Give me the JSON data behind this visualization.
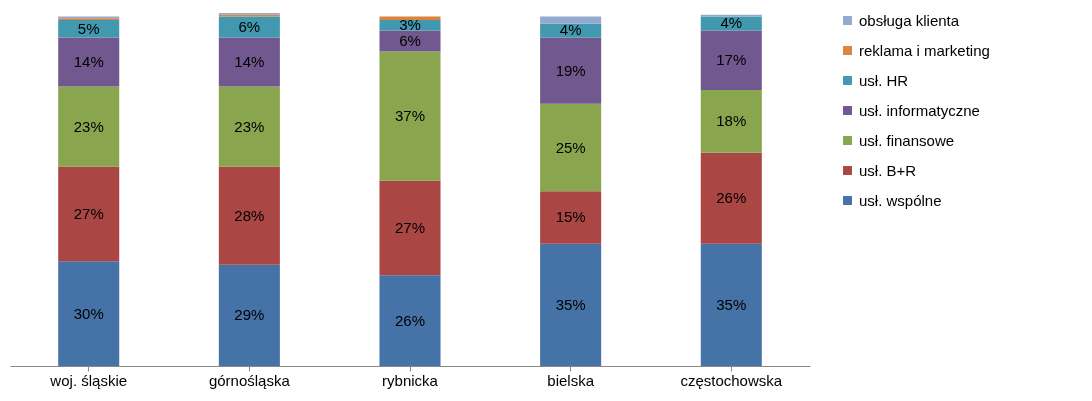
{
  "chart_data": {
    "type": "bar",
    "stacked": true,
    "legend": "right",
    "grid": false,
    "categories": [
      "woj. śląskie",
      "górnośląska",
      "rybnicka",
      "bielska",
      "częstochowska"
    ],
    "series": [
      {
        "name": "usł. wspólne",
        "color": "#4572a7",
        "values": [
          30,
          29,
          26,
          35,
          35
        ],
        "value_labels": [
          "30%",
          "29%",
          "26%",
          "35%",
          "35%"
        ]
      },
      {
        "name": "usł. B+R",
        "color": "#aa4643",
        "values": [
          27,
          28,
          27,
          15,
          26
        ],
        "value_labels": [
          "27%",
          "28%",
          "27%",
          "15%",
          "26%"
        ]
      },
      {
        "name": "usł. finansowe",
        "color": "#89a54e",
        "values": [
          23,
          23,
          37,
          25,
          18
        ],
        "value_labels": [
          "23%",
          "23%",
          "37%",
          "25%",
          "18%"
        ]
      },
      {
        "name": "usł. informatyczne",
        "color": "#71588f",
        "values": [
          14,
          14,
          6,
          19,
          17
        ],
        "value_labels": [
          "14%",
          "14%",
          "6%",
          "19%",
          "17%"
        ]
      },
      {
        "name": "usł. HR",
        "color": "#4198af",
        "values": [
          5,
          6,
          3,
          4,
          4
        ],
        "value_labels": [
          "5%",
          "6%",
          "3%",
          "4%",
          "4%"
        ]
      },
      {
        "name": "reklama i marketing",
        "color": "#db843d",
        "values": [
          0.5,
          0.5,
          1,
          0,
          0
        ],
        "value_labels": [
          null,
          null,
          null,
          null,
          null
        ]
      },
      {
        "name": "obsługa klienta",
        "color": "#93a9cf",
        "values": [
          0.5,
          0.5,
          0,
          2,
          0.5
        ],
        "value_labels": [
          null,
          null,
          null,
          null,
          null
        ]
      }
    ]
  }
}
